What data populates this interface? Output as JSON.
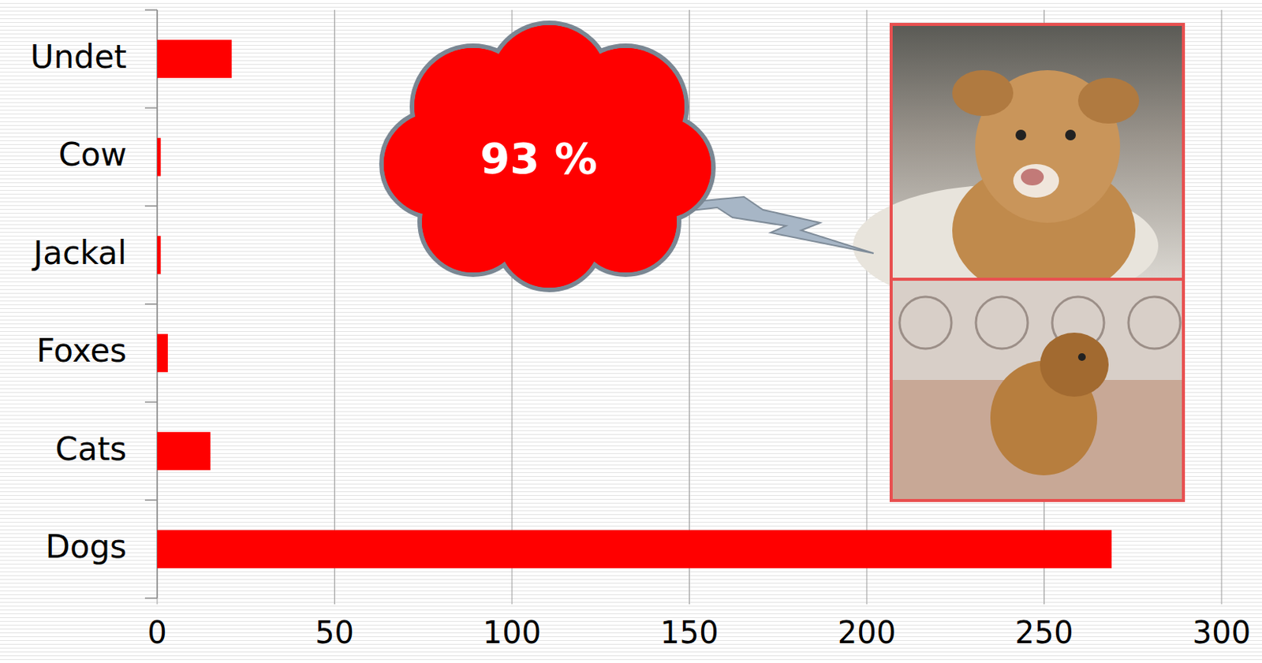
{
  "chart_data": {
    "type": "bar",
    "orientation": "horizontal",
    "categories": [
      "Dogs",
      "Cats",
      "Foxes",
      "Jackal",
      "Cow",
      "Undet"
    ],
    "values": [
      269,
      15,
      3,
      1,
      1,
      21
    ],
    "color": "#ff0000",
    "xlim": [
      0,
      300
    ],
    "xticks": [
      0,
      50,
      100,
      150,
      200,
      250,
      300
    ],
    "grid": true,
    "annotation": "93 %"
  }
}
